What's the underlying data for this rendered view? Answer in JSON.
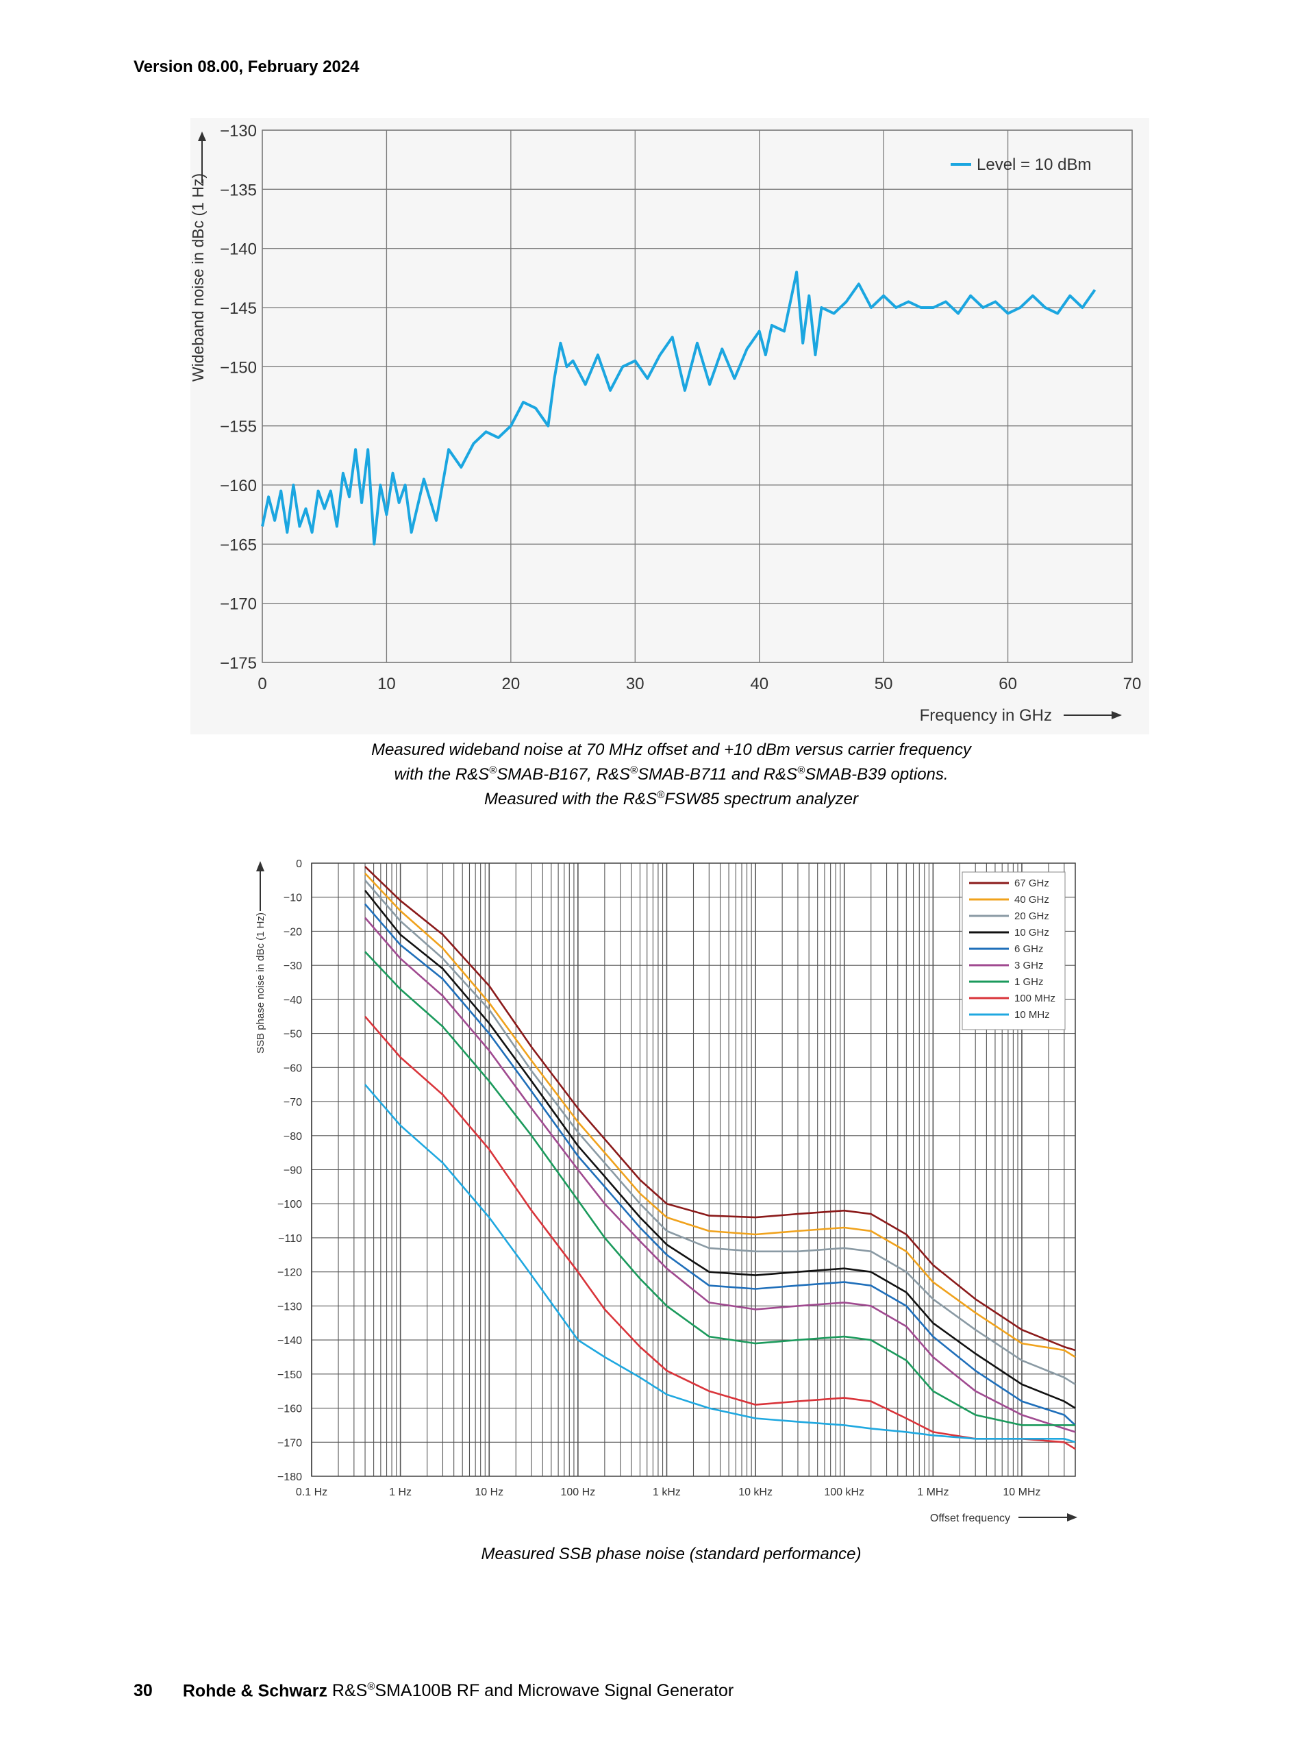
{
  "header": {
    "version": "Version 08.00, February 2024"
  },
  "captions": {
    "chart1": {
      "line1": "Measured wideband noise at 70 MHz offset and +10 dBm versus carrier frequency",
      "line2_a": "with the R&S",
      "line2_b": "SMAB-B167, R&S",
      "line2_c": "SMAB-B711 and R&S",
      "line2_d": "SMAB-B39 options.",
      "line3_a": "Measured with the R&S",
      "line3_b": "FSW85 spectrum analyzer",
      "reg": "®"
    },
    "chart2": {
      "line1": "Measured SSB phase noise (standard performance)"
    }
  },
  "footer": {
    "page": "30",
    "brand": "Rohde & Schwarz",
    "product_a": "R&S",
    "product_b": "SMA100B RF and Microwave Signal Generator",
    "reg": "®"
  },
  "chart_data": [
    {
      "type": "line",
      "ylabel": "Wideband noise in dBc (1 Hz)",
      "xlabel": "Frequency in GHz",
      "xlim": [
        0,
        70
      ],
      "ylim": [
        -175,
        -130
      ],
      "xticks": [
        "0",
        "10",
        "20",
        "30",
        "40",
        "50",
        "60",
        "70"
      ],
      "yticks": [
        "−130",
        "−135",
        "−140",
        "−145",
        "−150",
        "−155",
        "−160",
        "−165",
        "−170",
        "−175"
      ],
      "grid": true,
      "legend_position": "top-right",
      "colors": {
        "series": "#1ba6e0",
        "grid": "#7a7a7a",
        "background": "#f6f6f6"
      },
      "series": [
        {
          "name": "Level = 10 dBm",
          "x": [
            0,
            0.5,
            1,
            1.5,
            2,
            2.5,
            3,
            3.5,
            4,
            4.5,
            5,
            5.5,
            6,
            6.5,
            7,
            7.5,
            8,
            8.5,
            9,
            9.5,
            10,
            10.5,
            11,
            11.5,
            12,
            13,
            14,
            15,
            16,
            17,
            18,
            19,
            20,
            21,
            22,
            23,
            23.5,
            24,
            24.5,
            25,
            26,
            27,
            28,
            29,
            30,
            31,
            32,
            33,
            34,
            35,
            36,
            37,
            38,
            39,
            40,
            40.5,
            41,
            42,
            43,
            43.5,
            44,
            44.5,
            45,
            46,
            47,
            48,
            49,
            50,
            51,
            52,
            53,
            54,
            55,
            56,
            57,
            58,
            59,
            60,
            61,
            62,
            63,
            64,
            65,
            66,
            67
          ],
          "values": [
            -163.5,
            -161,
            -163,
            -160.5,
            -164,
            -160,
            -163.5,
            -162,
            -164,
            -160.5,
            -162,
            -160.5,
            -163.5,
            -159,
            -161,
            -157,
            -161.5,
            -157,
            -165,
            -160,
            -162.5,
            -159,
            -161.5,
            -160,
            -164,
            -159.5,
            -163,
            -157,
            -158.5,
            -156.5,
            -155.5,
            -156,
            -155,
            -153,
            -153.5,
            -155,
            -151,
            -148,
            -150,
            -149.5,
            -151.5,
            -149,
            -152,
            -150,
            -149.5,
            -151,
            -149,
            -147.5,
            -152,
            -148,
            -151.5,
            -148.5,
            -151,
            -148.5,
            -147,
            -149,
            -146.5,
            -147,
            -142,
            -148,
            -144,
            -149,
            -145,
            -145.5,
            -144.5,
            -143,
            -145,
            -144,
            -145,
            -144.5,
            -145,
            -145,
            -144.5,
            -145.5,
            -144,
            -145,
            -144.5,
            -145.5,
            -145,
            -144,
            -145,
            -145.5,
            -144,
            -145,
            -143.5
          ]
        }
      ]
    },
    {
      "type": "line",
      "ylabel": "SSB phase noise in dBc (1 Hz)",
      "xlabel": "Offset frequency",
      "x_scale": "log",
      "xlim": [
        "0.1 Hz",
        "40 MHz"
      ],
      "ylim": [
        -180,
        0
      ],
      "xticks": [
        "0.1 Hz",
        "1 Hz",
        "10 Hz",
        "100 Hz",
        "1 kHz",
        "10 kHz",
        "100 kHz",
        "1 MHz",
        "10 MHz"
      ],
      "yticks": [
        "0",
        "−10",
        "−20",
        "−30",
        "−40",
        "−50",
        "−60",
        "−70",
        "−80",
        "−90",
        "−100",
        "−110",
        "−120",
        "−130",
        "−140",
        "−150",
        "−160",
        "−170",
        "−180"
      ],
      "grid": true,
      "legend_position": "top-right",
      "x_hz": [
        0.4,
        1,
        3,
        10,
        30,
        100,
        200,
        500,
        1000,
        3000,
        10000,
        30000,
        100000,
        200000,
        500000,
        1000000,
        3000000,
        10000000,
        30000000,
        40000000
      ],
      "series": [
        {
          "name": "67 GHz",
          "color": "#8b1a1a",
          "values": [
            -1,
            -11,
            -21,
            -36,
            -54,
            -72,
            -81,
            -93,
            -100,
            -103.5,
            -104,
            -103,
            -102,
            -103,
            -109,
            -118,
            -128,
            -137,
            -142,
            -143
          ]
        },
        {
          "name": "40 GHz",
          "color": "#f0a21c",
          "values": [
            -3,
            -14,
            -25,
            -41,
            -58,
            -76,
            -85,
            -97,
            -104,
            -108,
            -109,
            -108,
            -107,
            -108,
            -114,
            -123,
            -132,
            -141,
            -143,
            -145
          ]
        },
        {
          "name": "20 GHz",
          "color": "#8a9aa4",
          "values": [
            -5,
            -17,
            -28,
            -43,
            -61,
            -79,
            -88,
            -100,
            -108,
            -113,
            -114,
            -114,
            -113,
            -114,
            -120,
            -128,
            -137,
            -146,
            -151,
            -153
          ]
        },
        {
          "name": "10 GHz",
          "color": "#111111",
          "values": [
            -8,
            -21,
            -31,
            -47,
            -64,
            -83,
            -92,
            -104,
            -112,
            -120,
            -121,
            -120,
            -119,
            -120,
            -126,
            -135,
            -144,
            -153,
            -158,
            -160
          ]
        },
        {
          "name": "6 GHz",
          "color": "#1f6fba",
          "values": [
            -12,
            -24,
            -34,
            -50,
            -67,
            -86,
            -95,
            -107,
            -115,
            -124,
            -125,
            -124,
            -123,
            -124,
            -130,
            -139,
            -149,
            -158,
            -162,
            -165
          ]
        },
        {
          "name": "3 GHz",
          "color": "#a04a90",
          "values": [
            -16,
            -28,
            -39,
            -55,
            -72,
            -90,
            -100,
            -111,
            -119,
            -129,
            -131,
            -130,
            -129,
            -130,
            -136,
            -145,
            -155,
            -162,
            -166,
            -167
          ]
        },
        {
          "name": "1 GHz",
          "color": "#1b9a5c",
          "values": [
            -26,
            -37,
            -48,
            -64,
            -80,
            -99,
            -110,
            -122,
            -130,
            -139,
            -141,
            -140,
            -139,
            -140,
            -146,
            -155,
            -162,
            -165,
            -165,
            -165
          ]
        },
        {
          "name": "100 MHz",
          "color": "#d9343a",
          "values": [
            -45,
            -57,
            -68,
            -84,
            -102,
            -120,
            -131,
            -142,
            -149,
            -155,
            -159,
            -158,
            -157,
            -158,
            -163,
            -167,
            -169,
            -169,
            -170,
            -172
          ]
        },
        {
          "name": "10 MHz",
          "color": "#1fa8e0",
          "values": [
            -65,
            -77,
            -88,
            -104,
            -121,
            -140,
            -145,
            -151,
            -156,
            -160,
            -163,
            -164,
            -165,
            -166,
            -167,
            -168,
            -169,
            -169,
            -169,
            -170
          ]
        }
      ]
    }
  ]
}
